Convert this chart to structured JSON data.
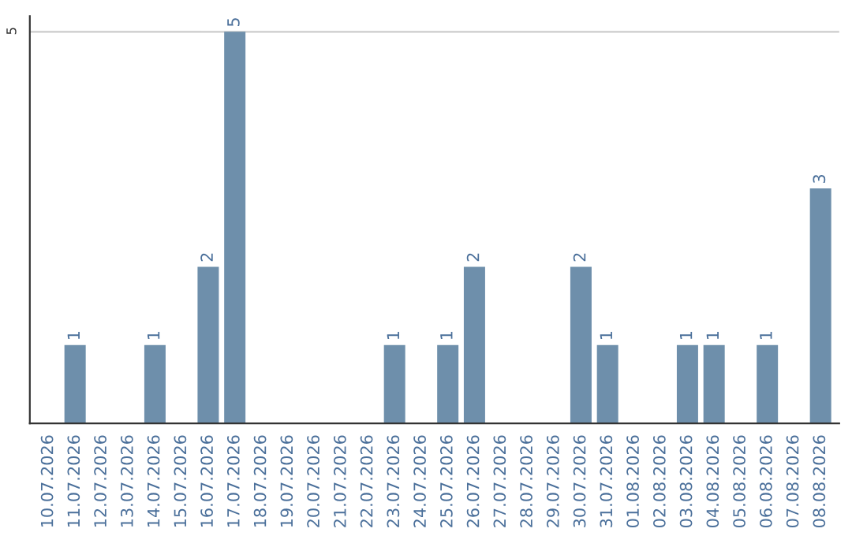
{
  "chart_data": {
    "type": "bar",
    "categories": [
      "10.07.2026",
      "11.07.2026",
      "12.07.2026",
      "13.07.2026",
      "14.07.2026",
      "15.07.2026",
      "16.07.2026",
      "17.07.2026",
      "18.07.2026",
      "19.07.2026",
      "20.07.2026",
      "21.07.2026",
      "22.07.2026",
      "23.07.2026",
      "24.07.2026",
      "25.07.2026",
      "26.07.2026",
      "27.07.2026",
      "28.07.2026",
      "29.07.2026",
      "30.07.2026",
      "31.07.2026",
      "01.08.2026",
      "02.08.2026",
      "03.08.2026",
      "04.08.2026",
      "05.08.2026",
      "06.08.2026",
      "07.08.2026",
      "08.08.2026"
    ],
    "values": [
      0,
      1,
      0,
      0,
      1,
      0,
      2,
      5,
      0,
      0,
      0,
      0,
      0,
      1,
      0,
      1,
      2,
      0,
      0,
      0,
      2,
      1,
      0,
      0,
      1,
      1,
      0,
      1,
      0,
      3
    ],
    "value_labels": [
      null,
      "1",
      null,
      null,
      "1",
      null,
      "2",
      "5",
      null,
      null,
      null,
      null,
      null,
      "1",
      null,
      "1",
      "2",
      null,
      null,
      null,
      "2",
      "1",
      null,
      null,
      "1",
      "1",
      null,
      "1",
      null,
      "3"
    ],
    "color": "#6e8fab",
    "ylim": [
      0,
      5.2
    ],
    "yticks": [
      5
    ],
    "grid": "y"
  }
}
